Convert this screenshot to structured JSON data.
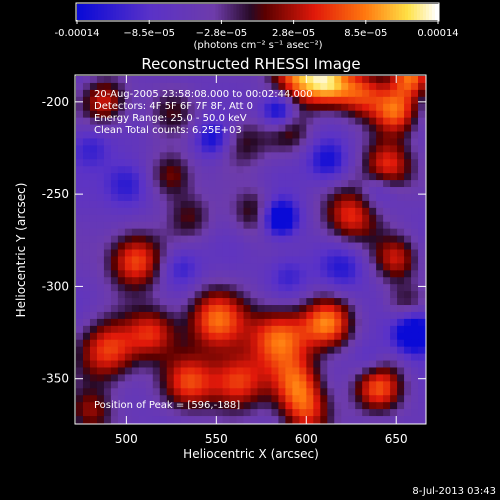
{
  "colorbar": {
    "tick_labels": [
      "-0.00014",
      "−8.5e−05",
      "−2.8e−05",
      "2.8e−05",
      "8.5e−05",
      "0.00014"
    ],
    "range": [
      -0.00014,
      0.00014
    ],
    "unit_label": "(photons cm⁻² s⁻¹ asec⁻²)"
  },
  "chart_data": {
    "type": "heatmap",
    "title": "Reconstructed RHESSI Image",
    "xlabel": "Heliocentric X (arcsec)",
    "ylabel": "Heliocentric Y (arcsec)",
    "xlim": [
      472,
      666
    ],
    "ylim": [
      -374,
      -186
    ],
    "x_ticks": [
      500,
      550,
      600,
      650
    ],
    "y_ticks": [
      -200,
      -250,
      -300,
      -350
    ],
    "annotations": [
      "20-Aug-2005 23:58:08.000 to 00:02:44.000",
      "Detectors: 4F 5F 6F 7F 8F, Att 0",
      "Energy Range: 25.0 - 50.0 keV",
      "Clean    Total counts: 6.25E+03"
    ],
    "peak_label": "Position of Peak = [596,-188]",
    "peak": [
      596,
      -188
    ],
    "grid": false,
    "sources": [
      {
        "x": 595,
        "y": -186,
        "value": 0.00014,
        "sigma": 11
      },
      {
        "x": 612,
        "y": -190,
        "value": 0.00013,
        "sigma": 9
      },
      {
        "x": 630,
        "y": -195,
        "value": 0.00011,
        "sigma": 10
      },
      {
        "x": 650,
        "y": -205,
        "value": 0.00012,
        "sigma": 9
      },
      {
        "x": 658,
        "y": -186,
        "value": 0.00013,
        "sigma": 8
      },
      {
        "x": 488,
        "y": -200,
        "value": 0.0001,
        "sigma": 9
      },
      {
        "x": 525,
        "y": -205,
        "value": 5e-05,
        "sigma": 10
      },
      {
        "x": 565,
        "y": -222,
        "value": 6e-05,
        "sigma": 10
      },
      {
        "x": 590,
        "y": -215,
        "value": 7e-05,
        "sigma": 9
      },
      {
        "x": 525,
        "y": -240,
        "value": 8e-05,
        "sigma": 9
      },
      {
        "x": 645,
        "y": -235,
        "value": 0.00012,
        "sigma": 10
      },
      {
        "x": 625,
        "y": -262,
        "value": 0.00011,
        "sigma": 11
      },
      {
        "x": 572,
        "y": -260,
        "value": 7e-05,
        "sigma": 9
      },
      {
        "x": 535,
        "y": -262,
        "value": 6e-05,
        "sigma": 9
      },
      {
        "x": 505,
        "y": -286,
        "value": 0.00013,
        "sigma": 11
      },
      {
        "x": 650,
        "y": -285,
        "value": 9e-05,
        "sigma": 9
      },
      {
        "x": 550,
        "y": -318,
        "value": 0.00013,
        "sigma": 12
      },
      {
        "x": 585,
        "y": -328,
        "value": 0.00014,
        "sigma": 12
      },
      {
        "x": 612,
        "y": -320,
        "value": 0.00013,
        "sigma": 10
      },
      {
        "x": 490,
        "y": -335,
        "value": 0.00012,
        "sigma": 12
      },
      {
        "x": 515,
        "y": -325,
        "value": 0.0001,
        "sigma": 10
      },
      {
        "x": 535,
        "y": -352,
        "value": 0.00011,
        "sigma": 11
      },
      {
        "x": 562,
        "y": -352,
        "value": 0.00012,
        "sigma": 11
      },
      {
        "x": 595,
        "y": -352,
        "value": 0.0001,
        "sigma": 10
      },
      {
        "x": 640,
        "y": -355,
        "value": 0.00012,
        "sigma": 10
      },
      {
        "x": 600,
        "y": -368,
        "value": 0.0001,
        "sigma": 10
      },
      {
        "x": 480,
        "y": -368,
        "value": 8e-05,
        "sigma": 9
      },
      {
        "x": 655,
        "y": -310,
        "value": 6e-05,
        "sigma": 8
      },
      {
        "x": 585,
        "y": -205,
        "value": -0.00013,
        "sigma": 7
      },
      {
        "x": 548,
        "y": -220,
        "value": -8e-05,
        "sigma": 7
      },
      {
        "x": 585,
        "y": -263,
        "value": -0.00014,
        "sigma": 7
      },
      {
        "x": 660,
        "y": -325,
        "value": -0.00014,
        "sigma": 8
      },
      {
        "x": 500,
        "y": -245,
        "value": -7e-05,
        "sigma": 9
      },
      {
        "x": 612,
        "y": -232,
        "value": -8e-05,
        "sigma": 8
      },
      {
        "x": 640,
        "y": -248,
        "value": -5e-05,
        "sigma": 7
      },
      {
        "x": 620,
        "y": -290,
        "value": -6e-05,
        "sigma": 9
      },
      {
        "x": 590,
        "y": -295,
        "value": -5e-05,
        "sigma": 8
      },
      {
        "x": 530,
        "y": -290,
        "value": -6e-05,
        "sigma": 8
      },
      {
        "x": 480,
        "y": -225,
        "value": -5e-05,
        "sigma": 8
      },
      {
        "x": 635,
        "y": -340,
        "value": -4e-05,
        "sigma": 7
      }
    ]
  },
  "footer": {
    "timestamp": "8-Jul-2013 03:43"
  }
}
